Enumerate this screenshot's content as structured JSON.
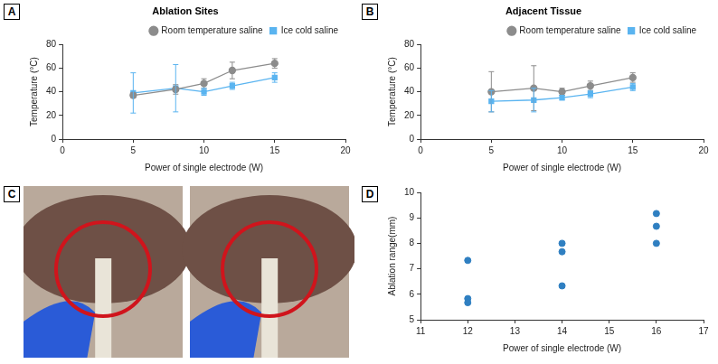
{
  "chart_data": [
    {
      "panel": "A",
      "type": "line",
      "title": "Ablation Sites",
      "x_label": "Power of single electrode (W)",
      "y_label": "Temperature (°C)",
      "xlim": [
        0,
        20
      ],
      "xticks": [
        0,
        5,
        10,
        15,
        20
      ],
      "ylim": [
        0,
        80
      ],
      "yticks": [
        0,
        20,
        40,
        60,
        80
      ],
      "grid": false,
      "legend": "top right",
      "x": [
        5,
        8,
        10,
        12,
        15
      ],
      "series": [
        {
          "name": "Room temperature saline",
          "color": "#8c8c8c",
          "marker": "circle",
          "values": [
            37,
            42,
            47,
            58,
            64
          ],
          "error": [
            2,
            4,
            4,
            7,
            4
          ]
        },
        {
          "name": "Ice cold saline",
          "color": "#5ab4f0",
          "marker": "square",
          "values": [
            39,
            43,
            40,
            45,
            52
          ],
          "error": [
            17,
            20,
            3,
            3,
            4
          ]
        }
      ]
    },
    {
      "panel": "B",
      "type": "line",
      "title": "Adjacent Tissue",
      "x_label": "Power of single electrode (W)",
      "y_label": "Temperature (°C)",
      "xlim": [
        0,
        20
      ],
      "xticks": [
        0,
        5,
        10,
        15,
        20
      ],
      "ylim": [
        0,
        80
      ],
      "yticks": [
        0,
        20,
        40,
        60,
        80
      ],
      "grid": false,
      "legend": "top right",
      "x": [
        5,
        8,
        10,
        12,
        15
      ],
      "series": [
        {
          "name": "Room temperature saline",
          "color": "#8c8c8c",
          "marker": "circle",
          "values": [
            40,
            43,
            40,
            45,
            52
          ],
          "error": [
            17,
            19,
            3,
            4,
            4
          ]
        },
        {
          "name": "Ice cold saline",
          "color": "#5ab4f0",
          "marker": "square",
          "values": [
            32,
            33,
            35,
            38,
            44
          ],
          "error": [
            9,
            10,
            2,
            3,
            3
          ]
        }
      ]
    },
    {
      "panel": "D",
      "type": "scatter",
      "x_label": "Power of single electrode (W)",
      "y_label": "Ablation range(mm)",
      "xlim": [
        11,
        17
      ],
      "xticks": [
        11,
        12,
        13,
        14,
        15,
        16,
        17
      ],
      "ylim": [
        5,
        10
      ],
      "yticks": [
        5,
        6,
        7,
        8,
        9,
        10
      ],
      "grid": false,
      "color": "#2f7fc1",
      "marker": "circle",
      "x": [
        12,
        12,
        12,
        14,
        14,
        14,
        16,
        16,
        16
      ],
      "values": [
        7.33,
        5.83,
        5.67,
        8.0,
        7.67,
        6.33,
        9.17,
        8.67,
        8.0
      ]
    }
  ],
  "photo_panel": {
    "panel": "C"
  }
}
